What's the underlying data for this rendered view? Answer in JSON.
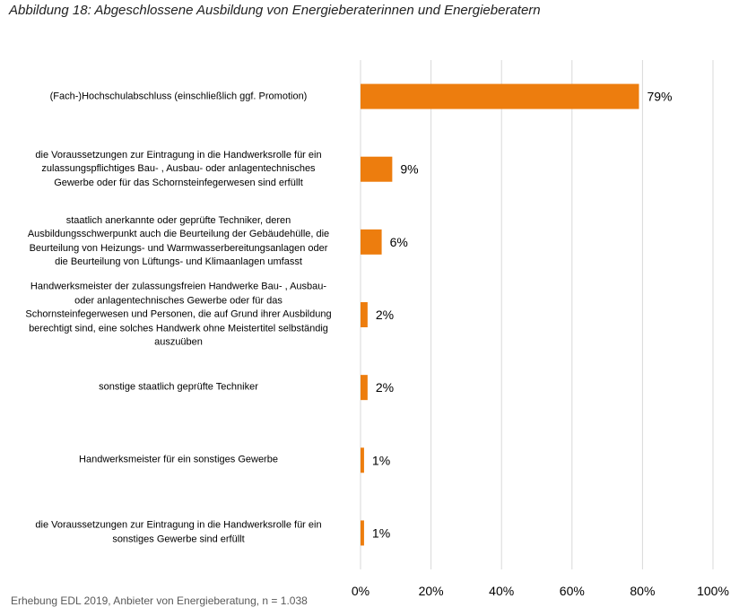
{
  "title": "Abbildung 18: Abgeschlossene Ausbildung von Energieberaterinnen und Energieberatern",
  "source": "Erhebung EDL 2019, Anbieter von Energieberatung, n = 1.038",
  "chart_data": {
    "type": "bar",
    "orientation": "horizontal",
    "categories": [
      "(Fach-)Hochschulabschluss (einschließlich ggf. Promotion)",
      "die Voraussetzungen zur Eintragung in die Handwerksrolle für ein zulassungspflichtiges Bau- , Ausbau- oder anlagentechnisches Gewerbe oder für das Schornsteinfegerwesen sind erfüllt",
      "staatlich anerkannte oder geprüfte Techniker, deren Ausbildungsschwerpunkt auch die Beurteilung der Gebäudehülle, die Beurteilung von Heizungs- und Warmwasserbereitungsanlagen oder die Beurteilung von Lüftungs- und Klimaanlagen umfasst",
      "Handwerksmeister der zulassungsfreien Handwerke Bau- , Ausbau- oder anlagentechnisches Gewerbe oder für das Schornsteinfegerwesen und Personen, die auf Grund ihrer Ausbildung berechtigt sind, eine solches Handwerk ohne Meistertitel selbständig auszuüben",
      "sonstige staatlich geprüfte Techniker",
      "Handwerksmeister für ein sonstiges Gewerbe",
      "die Voraussetzungen zur Eintragung in die Handwerksrolle für ein sonstiges Gewerbe sind erfüllt"
    ],
    "category_lines": [
      [
        "(Fach-)Hochschulabschluss (einschließlich ggf. Promotion)"
      ],
      [
        "die Voraussetzungen zur Eintragung in die Handwerksrolle für ein",
        "zulassungspflichtiges Bau- , Ausbau- oder anlagentechnisches",
        "Gewerbe oder für das Schornsteinfegerwesen sind erfüllt"
      ],
      [
        "staatlich anerkannte oder geprüfte Techniker, deren",
        "Ausbildungsschwerpunkt auch die Beurteilung der Gebäudehülle, die",
        "Beurteilung von Heizungs- und Warmwasserbereitungsanlagen oder",
        "die Beurteilung von Lüftungs- und Klimaanlagen umfasst"
      ],
      [
        "Handwerksmeister der zulassungsfreien Handwerke Bau- , Ausbau-",
        "oder anlagentechnisches Gewerbe oder für das",
        "Schornsteinfegerwesen und Personen, die auf Grund ihrer Ausbildung",
        "berechtigt sind, eine solches Handwerk ohne Meistertitel selbständig",
        "auszuüben"
      ],
      [
        "sonstige staatlich geprüfte Techniker"
      ],
      [
        "Handwerksmeister für ein sonstiges Gewerbe"
      ],
      [
        "die Voraussetzungen zur Eintragung in die Handwerksrolle für ein",
        "sonstiges Gewerbe sind erfüllt"
      ]
    ],
    "values": [
      79,
      9,
      6,
      2,
      2,
      1,
      1
    ],
    "value_labels": [
      "79%",
      "9%",
      "6%",
      "2%",
      "2%",
      "1%",
      "1%"
    ],
    "xlim": [
      0,
      100
    ],
    "xticks": [
      0,
      20,
      40,
      60,
      80,
      100
    ],
    "xtick_labels": [
      "0%",
      "20%",
      "40%",
      "60%",
      "80%",
      "100%"
    ],
    "grid": "vertical",
    "bar_color": "#ED7D0E",
    "grid_color": "#D9D9D9",
    "xlabel": "",
    "ylabel": ""
  }
}
